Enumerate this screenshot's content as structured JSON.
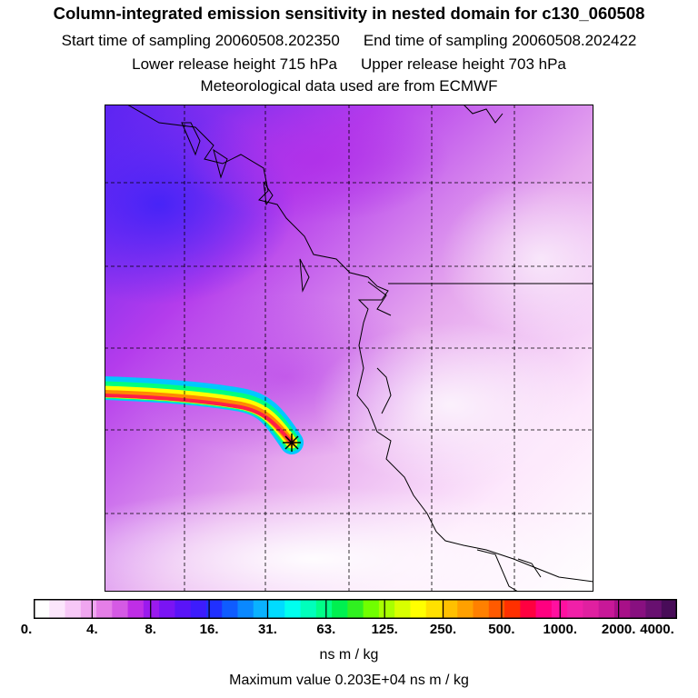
{
  "header": {
    "title": "Column-integrated emission sensitivity in nested domain for c130_060508",
    "start_label": "Start time of sampling 20060508.202350",
    "end_label": "End time of sampling 20060508.202422",
    "lower_label": "Lower release height  715 hPa",
    "upper_label": "Upper release height  703 hPa",
    "met_label": "Meteorological data used are from ECMWF"
  },
  "colorbar": {
    "tick_labels": [
      "0.",
      "4.",
      "8.",
      "16.",
      "31.",
      "63.",
      "125.",
      "250.",
      "500.",
      "1000.",
      "2000.",
      "4000."
    ],
    "colors": [
      "#ffffff",
      "#fce6fc",
      "#f7c8f7",
      "#f0a6f0",
      "#e57ee7",
      "#d55ae4",
      "#bf2ee6",
      "#9b1aee",
      "#7a14f4",
      "#5a14f8",
      "#3d1cfc",
      "#2030ff",
      "#0f5cff",
      "#0a88ff",
      "#0ab2ff",
      "#00dcff",
      "#00ffee",
      "#00ffbb",
      "#00ff88",
      "#00f050",
      "#30f020",
      "#70ff00",
      "#a8ff00",
      "#d8ff00",
      "#ffff00",
      "#ffe000",
      "#ffc000",
      "#ffa000",
      "#ff8000",
      "#ff5a00",
      "#ff3000",
      "#ff0040",
      "#ff0080",
      "#ff10a0",
      "#f020a8",
      "#e020a0",
      "#c81898",
      "#a81088",
      "#881080",
      "#681070",
      "#480c58"
    ],
    "units": "ns m / kg"
  },
  "footer": {
    "max_value": "Maximum value  0.203E+04 ns m / kg"
  },
  "map": {
    "grid_lines": 5,
    "release_marker": "star-marker",
    "plume_colors": [
      "#ff1e46",
      "#ff8a00",
      "#ffff00",
      "#00ff80",
      "#00c8ff"
    ]
  }
}
